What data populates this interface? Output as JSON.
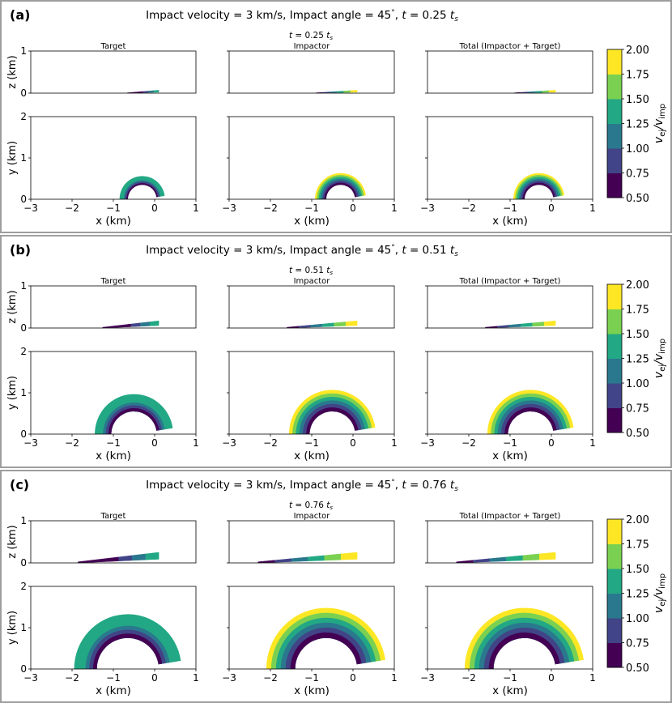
{
  "colorbar": {
    "label_main": "v",
    "label_sub1": "ej",
    "label_mid": "/v",
    "label_sub2": "imp",
    "ticks": [
      "2.00",
      "1.75",
      "1.50",
      "1.25",
      "1.00",
      "0.75",
      "0.50"
    ],
    "colors": [
      "#440154",
      "#414487",
      "#2a788e",
      "#22a884",
      "#7ad151",
      "#fde725"
    ]
  },
  "chart_data": [
    {
      "type": "scatter",
      "panel_tag": "(a)",
      "title": "Impact velocity = 3 km/s, Impact angle =  45°, t =   0.25 t_s",
      "title_parts": {
        "prefix": "Impact velocity = 3 km/s, Impact angle =  45",
        "deg": "°",
        "mid": ", ",
        "t": "t",
        "eq": " =   0.25 ",
        "ts": "t",
        "s": "s"
      },
      "time_label": {
        "t": "t",
        "value": " =  0.25 ",
        "ts": "t",
        "s": "s"
      },
      "column_titles": [
        "Target",
        "Impactor",
        "Total (Impactor + Target)"
      ],
      "xlabel": "x (km)",
      "ylabel_top": "z (km)",
      "ylabel_bottom": "y (km)",
      "xlim": [
        -3,
        1
      ],
      "zlim": [
        0,
        1
      ],
      "ylim": [
        0,
        2
      ],
      "xticks": [
        "−3",
        "−2",
        "−1",
        "0",
        "1"
      ],
      "zticks": [
        "0",
        "1"
      ],
      "yticks": [
        "0",
        "1",
        "2"
      ],
      "ejecta": {
        "center_x": -0.3,
        "inner_radius": 0.35,
        "outer_radius": 0.55,
        "impactor_outer_radius": 0.62,
        "z_max": 0.07,
        "z_tail_x": -0.9
      }
    },
    {
      "type": "scatter",
      "panel_tag": "(b)",
      "title": "Impact velocity = 3 km/s, Impact angle =  45°, t =   0.51 t_s",
      "title_parts": {
        "prefix": "Impact velocity = 3 km/s, Impact angle =  45",
        "deg": "°",
        "mid": ", ",
        "t": "t",
        "eq": " =   0.51 ",
        "ts": "t",
        "s": "s"
      },
      "time_label": {
        "t": "t",
        "value": " =  0.51 ",
        "ts": "t",
        "s": "s"
      },
      "column_titles": [
        "Target",
        "Impactor",
        "Total (Impactor + Target)"
      ],
      "xlabel": "x (km)",
      "ylabel_top": "z (km)",
      "ylabel_bottom": "y (km)",
      "xlim": [
        -3,
        1
      ],
      "zlim": [
        0,
        1
      ],
      "ylim": [
        0,
        2
      ],
      "xticks": [
        "−3",
        "−2",
        "−1",
        "0",
        "1"
      ],
      "zticks": [
        "0",
        "1"
      ],
      "yticks": [
        "0",
        "1",
        "2"
      ],
      "ejecta": {
        "center_x": -0.5,
        "inner_radius": 0.55,
        "outer_radius": 0.95,
        "impactor_outer_radius": 1.05,
        "z_max": 0.17,
        "z_tail_x": -1.6
      }
    },
    {
      "type": "scatter",
      "panel_tag": "(c)",
      "title": "Impact velocity = 3 km/s, Impact angle =  45°, t =   0.76 t_s",
      "title_parts": {
        "prefix": "Impact velocity = 3 km/s, Impact angle =  45",
        "deg": "°",
        "mid": ", ",
        "t": "t",
        "eq": " =   0.76 ",
        "ts": "t",
        "s": "s"
      },
      "time_label": {
        "t": "t",
        "value": " =  0.76 ",
        "ts": "t",
        "s": "s"
      },
      "column_titles": [
        "Target",
        "Impactor",
        "Total (Impactor + Target)"
      ],
      "xlabel": "x (km)",
      "ylabel_top": "z (km)",
      "ylabel_bottom": "y (km)",
      "xlim": [
        -3,
        1
      ],
      "zlim": [
        0,
        1
      ],
      "ylim": [
        0,
        2
      ],
      "xticks": [
        "−3",
        "−2",
        "−1",
        "0",
        "1"
      ],
      "zticks": [
        "0",
        "1"
      ],
      "yticks": [
        "0",
        "1",
        "2"
      ],
      "ejecta": {
        "center_x": -0.65,
        "inner_radius": 0.75,
        "outer_radius": 1.3,
        "impactor_outer_radius": 1.45,
        "z_max": 0.25,
        "z_tail_x": -2.3
      }
    }
  ]
}
